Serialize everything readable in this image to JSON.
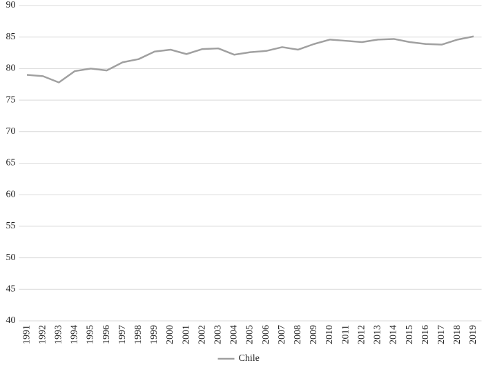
{
  "chart_data": {
    "type": "line",
    "categories": [
      "1991",
      "1992",
      "1993",
      "1994",
      "1995",
      "1996",
      "1997",
      "1998",
      "1999",
      "2000",
      "2001",
      "2002",
      "2003",
      "2004",
      "2005",
      "2006",
      "2007",
      "2008",
      "2009",
      "2010",
      "2011",
      "2012",
      "2013",
      "2014",
      "2015",
      "2016",
      "2017",
      "2018",
      "2019"
    ],
    "series": [
      {
        "name": "Chile",
        "color": "#a0a0a0",
        "values": [
          79.0,
          78.8,
          77.8,
          79.6,
          80.0,
          79.7,
          81.0,
          81.5,
          82.7,
          83.0,
          82.3,
          83.1,
          83.2,
          82.2,
          82.6,
          82.8,
          83.4,
          83.0,
          83.9,
          84.6,
          84.4,
          84.2,
          84.6,
          84.7,
          84.2,
          83.9,
          83.8,
          84.6,
          85.1
        ]
      }
    ],
    "ylim": [
      40,
      90
    ],
    "yticks": [
      40,
      45,
      50,
      55,
      60,
      65,
      70,
      75,
      80,
      85,
      90
    ],
    "grid": true,
    "legend": "bottom"
  }
}
